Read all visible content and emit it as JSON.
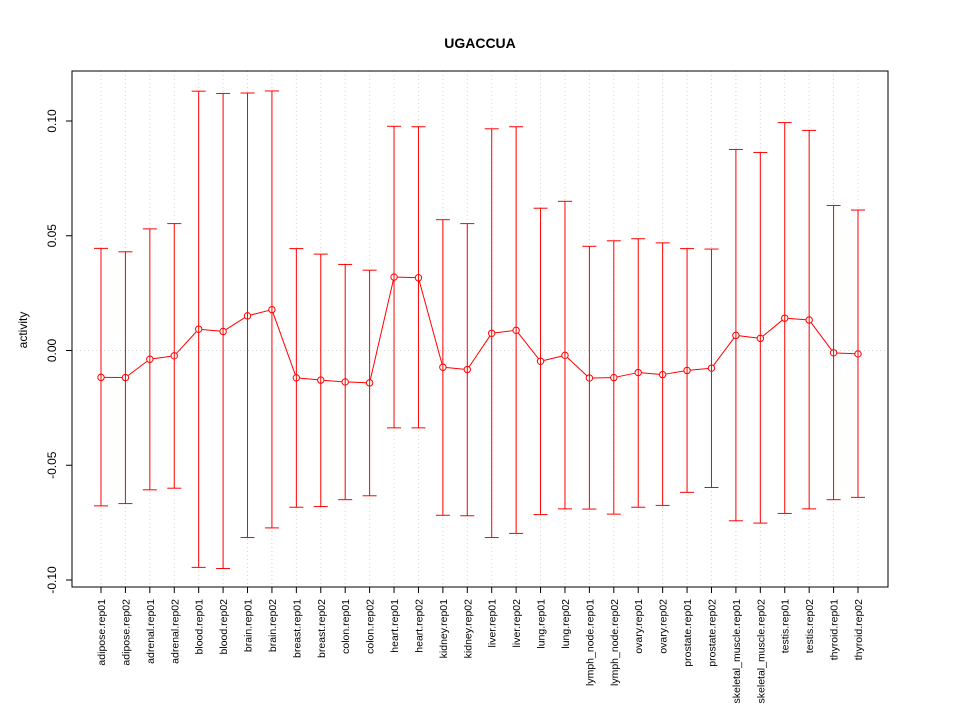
{
  "chart_data": {
    "type": "line",
    "title": "UGACCUA",
    "xlabel": "",
    "ylabel": "activity",
    "ylim": [
      -0.1,
      0.12
    ],
    "yticks": [
      -0.1,
      -0.05,
      0.0,
      0.05,
      0.1
    ],
    "ytick_labels": [
      "-0.10",
      "-0.05",
      "0.00",
      "0.05",
      "0.10"
    ],
    "grid": true,
    "series_color": "#ff0000",
    "grid_color": "#d3d3d3",
    "categories": [
      "adipose.rep01",
      "adipose.rep02",
      "adrenal.rep01",
      "adrenal.rep02",
      "blood.rep01",
      "blood.rep02",
      "brain.rep01",
      "brain.rep02",
      "breast.rep01",
      "breast.rep02",
      "colon.rep01",
      "colon.rep02",
      "heart.rep01",
      "heart.rep02",
      "kidney.rep01",
      "kidney.rep02",
      "liver.rep01",
      "liver.rep02",
      "lung.rep01",
      "lung.rep02",
      "lymph_node.rep01",
      "lymph_node.rep02",
      "ovary.rep01",
      "ovary.rep02",
      "prostate.rep01",
      "prostate.rep02",
      "skeletal_muscle.rep01",
      "skeletal_muscle.rep02",
      "testis.rep01",
      "testis.rep02",
      "thyroid.rep01",
      "thyroid.rep02"
    ],
    "values": [
      -0.0117,
      -0.0118,
      -0.0038,
      -0.0023,
      0.0093,
      0.0083,
      0.0151,
      0.0178,
      -0.0119,
      -0.0129,
      -0.0137,
      -0.0141,
      0.032,
      0.0317,
      -0.0073,
      -0.0083,
      0.0075,
      0.0088,
      -0.0047,
      -0.0021,
      -0.012,
      -0.0118,
      -0.0096,
      -0.0105,
      -0.0087,
      -0.0077,
      0.0066,
      0.0053,
      0.0141,
      0.0133,
      -0.001,
      -0.0015
    ],
    "upper": [
      0.0445,
      0.043,
      0.053,
      0.0553,
      0.113,
      0.112,
      0.1122,
      0.1131,
      0.0444,
      0.042,
      0.0375,
      0.035,
      0.0977,
      0.0975,
      0.057,
      0.0553,
      0.0966,
      0.0975,
      0.062,
      0.065,
      0.0454,
      0.0478,
      0.0487,
      0.0469,
      0.0444,
      0.0442,
      0.0876,
      0.0863,
      0.0993,
      0.0959,
      0.0632,
      0.0612
    ],
    "lower": [
      -0.0677,
      -0.0667,
      -0.0607,
      -0.06,
      -0.0945,
      -0.095,
      -0.0815,
      -0.0773,
      -0.0683,
      -0.068,
      -0.065,
      -0.0633,
      -0.0337,
      -0.0337,
      -0.0718,
      -0.072,
      -0.0815,
      -0.0797,
      -0.0715,
      -0.069,
      -0.0691,
      -0.0713,
      -0.0683,
      -0.0675,
      -0.0618,
      -0.0597,
      -0.0742,
      -0.0752,
      -0.071,
      -0.069,
      -0.065,
      -0.064
    ]
  }
}
